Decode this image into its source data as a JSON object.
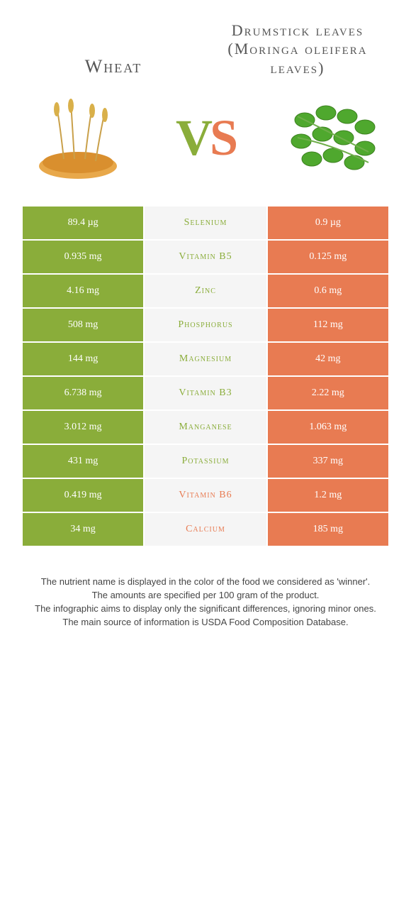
{
  "colors": {
    "left": "#8aad3a",
    "right": "#e87b52",
    "mid_bg": "#f5f5f5",
    "text": "#555555"
  },
  "header": {
    "left_title": "Wheat",
    "right_title": "Drumstick leaves (Moringa oleifera leaves)",
    "vs_v": "V",
    "vs_s": "S"
  },
  "rows": [
    {
      "nutrient": "Selenium",
      "left": "89.4 µg",
      "right": "0.9 µg",
      "winner": "left"
    },
    {
      "nutrient": "Vitamin B5",
      "left": "0.935 mg",
      "right": "0.125 mg",
      "winner": "left"
    },
    {
      "nutrient": "Zinc",
      "left": "4.16 mg",
      "right": "0.6 mg",
      "winner": "left"
    },
    {
      "nutrient": "Phosphorus",
      "left": "508 mg",
      "right": "112 mg",
      "winner": "left"
    },
    {
      "nutrient": "Magnesium",
      "left": "144 mg",
      "right": "42 mg",
      "winner": "left"
    },
    {
      "nutrient": "Vitamin B3",
      "left": "6.738 mg",
      "right": "2.22 mg",
      "winner": "left"
    },
    {
      "nutrient": "Manganese",
      "left": "3.012 mg",
      "right": "1.063 mg",
      "winner": "left"
    },
    {
      "nutrient": "Potassium",
      "left": "431 mg",
      "right": "337 mg",
      "winner": "left"
    },
    {
      "nutrient": "Vitamin B6",
      "left": "0.419 mg",
      "right": "1.2 mg",
      "winner": "right"
    },
    {
      "nutrient": "Calcium",
      "left": "34 mg",
      "right": "185 mg",
      "winner": "right"
    }
  ],
  "footnotes": [
    "The nutrient name is displayed in the color of the food we considered as 'winner'.",
    "The amounts are specified per 100 gram of the product.",
    "The infographic aims to display only the significant differences, ignoring minor ones.",
    "The main source of information is USDA Food Composition Database."
  ]
}
